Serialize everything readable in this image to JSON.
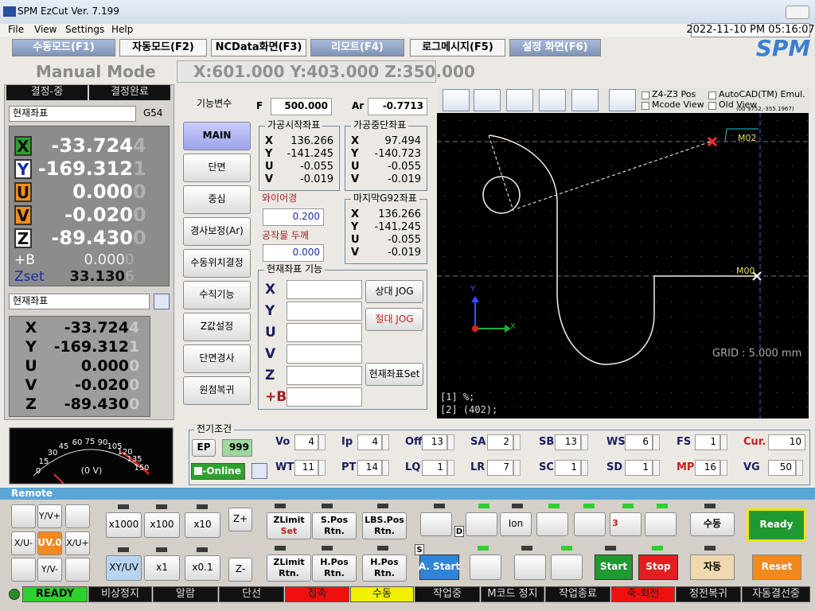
{
  "window": {
    "title": "SPM EzCut Ver. 7.199",
    "datetime": "2022-11-10 PM 05:16:07",
    "logo": "SPM"
  },
  "menu": [
    "File",
    "View",
    "Settings",
    "Help"
  ],
  "tabs": [
    "수동모드(F1)",
    "자동모드(F2)",
    "NCData화면(F3)",
    "리모트(F4)",
    "로그메시지(F5)",
    "설정 화면(F6)"
  ],
  "mode": {
    "title": "Manual Mode",
    "position": "X:601.000 Y:403.000 Z:350.000"
  },
  "left": {
    "tabs": [
      "결정-중",
      "결정완료"
    ],
    "coord_select": "현재좌표",
    "work_offset": "G54",
    "axes": [
      {
        "label": "X",
        "value": "-33.724",
        "ghost": "4"
      },
      {
        "label": "Y",
        "value": "-169.312",
        "ghost": "1"
      },
      {
        "label": "U",
        "value": "0.000",
        "ghost": "0"
      },
      {
        "label": "V",
        "value": "-0.020",
        "ghost": "0"
      },
      {
        "label": "Z",
        "value": "-89.430",
        "ghost": "0"
      }
    ],
    "extra": [
      {
        "label": "+B",
        "value": "0.000",
        "ghost": "0"
      },
      {
        "label": "Zset",
        "value": "33.130",
        "ghost": "6"
      }
    ],
    "coord_select2": "현재좌표",
    "axes2": [
      {
        "label": "X",
        "value": "-33.724",
        "ghost": "4"
      },
      {
        "label": "Y",
        "value": "-169.312",
        "ghost": "1"
      },
      {
        "label": "U",
        "value": "0.000",
        "ghost": "0"
      },
      {
        "label": "V",
        "value": "-0.020",
        "ghost": "0"
      },
      {
        "label": "Z",
        "value": "-89.430",
        "ghost": "0"
      }
    ]
  },
  "functions": {
    "title": "기능변수",
    "buttons": [
      "MAIN",
      "단면",
      "중심",
      "경사보정(Ar)",
      "수동위치결정",
      "수직기능",
      "Z값설정",
      "단면경사",
      "원점복귀"
    ]
  },
  "feed": {
    "f": {
      "label": "F",
      "value": "500.000"
    },
    "ar": {
      "label": "Ar",
      "value": "-0.7713"
    }
  },
  "coord_groups": [
    {
      "title": "가공시작좌표",
      "rows": [
        [
          "X",
          "136.266"
        ],
        [
          "Y",
          "-141.245"
        ],
        [
          "U",
          "-0.055"
        ],
        [
          "V",
          "-0.019"
        ]
      ]
    },
    {
      "title": "가공중단좌표",
      "rows": [
        [
          "X",
          "97.494"
        ],
        [
          "Y",
          "-140.723"
        ],
        [
          "U",
          "-0.055"
        ],
        [
          "V",
          "-0.019"
        ]
      ]
    },
    {
      "title": "마지막G92좌표",
      "rows": [
        [
          "X",
          "136.266"
        ],
        [
          "Y",
          "-141.245"
        ],
        [
          "U",
          "-0.055"
        ],
        [
          "V",
          "-0.019"
        ]
      ]
    }
  ],
  "wire": {
    "label": "와이어경",
    "value": "0.200"
  },
  "thickness": {
    "label": "공작물 두께",
    "value": "0.000"
  },
  "current": {
    "title": "현재좌표 기능",
    "axes": [
      "X",
      "Y",
      "U",
      "V",
      "Z",
      "+B"
    ],
    "buttons": [
      "상대 JOG",
      "절대 JOG",
      "현재좌표Set"
    ]
  },
  "view": {
    "options": [
      "Z4-Z3 Pos",
      "Mcode View",
      "AutoCAD(TM) Emul.",
      "Old View"
    ],
    "coords": "(00 9752,-355.1967)",
    "markers": [
      "M02",
      "M00"
    ],
    "grid": "GRID : 5.000 mm",
    "axis_x": "X",
    "axis_y": "Y",
    "console": [
      "[1] %;",
      "[2] (402);"
    ]
  },
  "meter": {
    "scale": [
      "0",
      "15",
      "30",
      "45",
      "60",
      "75",
      "90",
      "105",
      "120",
      "135",
      "150"
    ],
    "reading": "(0 V)"
  },
  "electrical": {
    "title": "전기조건",
    "ep": "EP",
    "ep_value": "999",
    "online": "E-Online",
    "params": [
      {
        "label": "Vo",
        "value": "4"
      },
      {
        "label": "Ip",
        "value": "4"
      },
      {
        "label": "Off",
        "value": "13"
      },
      {
        "label": "SA",
        "value": "2"
      },
      {
        "label": "SB",
        "value": "13"
      },
      {
        "label": "WS",
        "value": "6"
      },
      {
        "label": "FS",
        "value": "1"
      },
      {
        "label": "Cur. v",
        "value": "10"
      },
      {
        "label": "WT",
        "value": "11"
      },
      {
        "label": "PT",
        "value": "14"
      },
      {
        "label": "LQ",
        "value": "1"
      },
      {
        "label": "LR",
        "value": "7"
      },
      {
        "label": "SC",
        "value": "1"
      },
      {
        "label": "SD",
        "value": "1"
      },
      {
        "label": "MP",
        "value": "16"
      },
      {
        "label": "VG",
        "value": "50"
      }
    ]
  },
  "remote": {
    "title": "Remote",
    "jog": [
      "Y/V+",
      "X/U-",
      "UV.0",
      "X/U+",
      "Y/V-"
    ],
    "step": [
      "x1000",
      "x100",
      "x10",
      "Z+",
      "XY/UV",
      "x1",
      "x0.1",
      "Z-"
    ],
    "limits": [
      [
        "ZLimit",
        "Set"
      ],
      [
        "S.Pos",
        "Rtn."
      ],
      [
        "LBS.Pos",
        "Rtn."
      ],
      [
        "ZLimit",
        "Rtn."
      ],
      [
        "H.Pos",
        "Rtn."
      ],
      [
        "H.Pos",
        "Rtn."
      ]
    ],
    "icons": [
      "D",
      "Ion",
      "3",
      "S"
    ],
    "controls": [
      "수동",
      "Ready",
      "A. Start",
      "Start",
      "Stop",
      "자동",
      "Reset"
    ]
  },
  "status": [
    "READY",
    "비상정지",
    "알람",
    "단선",
    "접촉",
    "수동",
    "작업중",
    "M코드 정지",
    "작업종료",
    "축-회전",
    "정전복귀",
    "자동결선중"
  ]
}
